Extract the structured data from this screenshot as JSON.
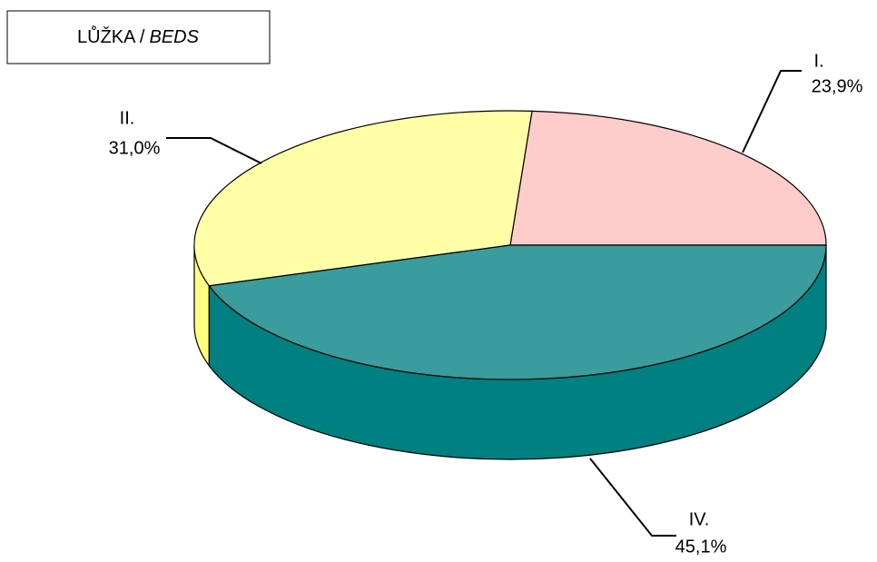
{
  "chart_data": {
    "type": "pie3d",
    "title": [
      "LŮŽKA /",
      "BEDS"
    ],
    "categories": [
      "I.",
      "II.",
      "IV."
    ],
    "values": [
      23.9,
      31.0,
      45.1
    ],
    "value_labels": [
      "23,9%",
      "31,0%",
      "45,1%"
    ],
    "colors": [
      "#ffcccc",
      "#ffffa8",
      "#3a9c9c"
    ],
    "side_colors": [
      "#e8b0b0",
      "#ffff80",
      "#008080"
    ]
  }
}
